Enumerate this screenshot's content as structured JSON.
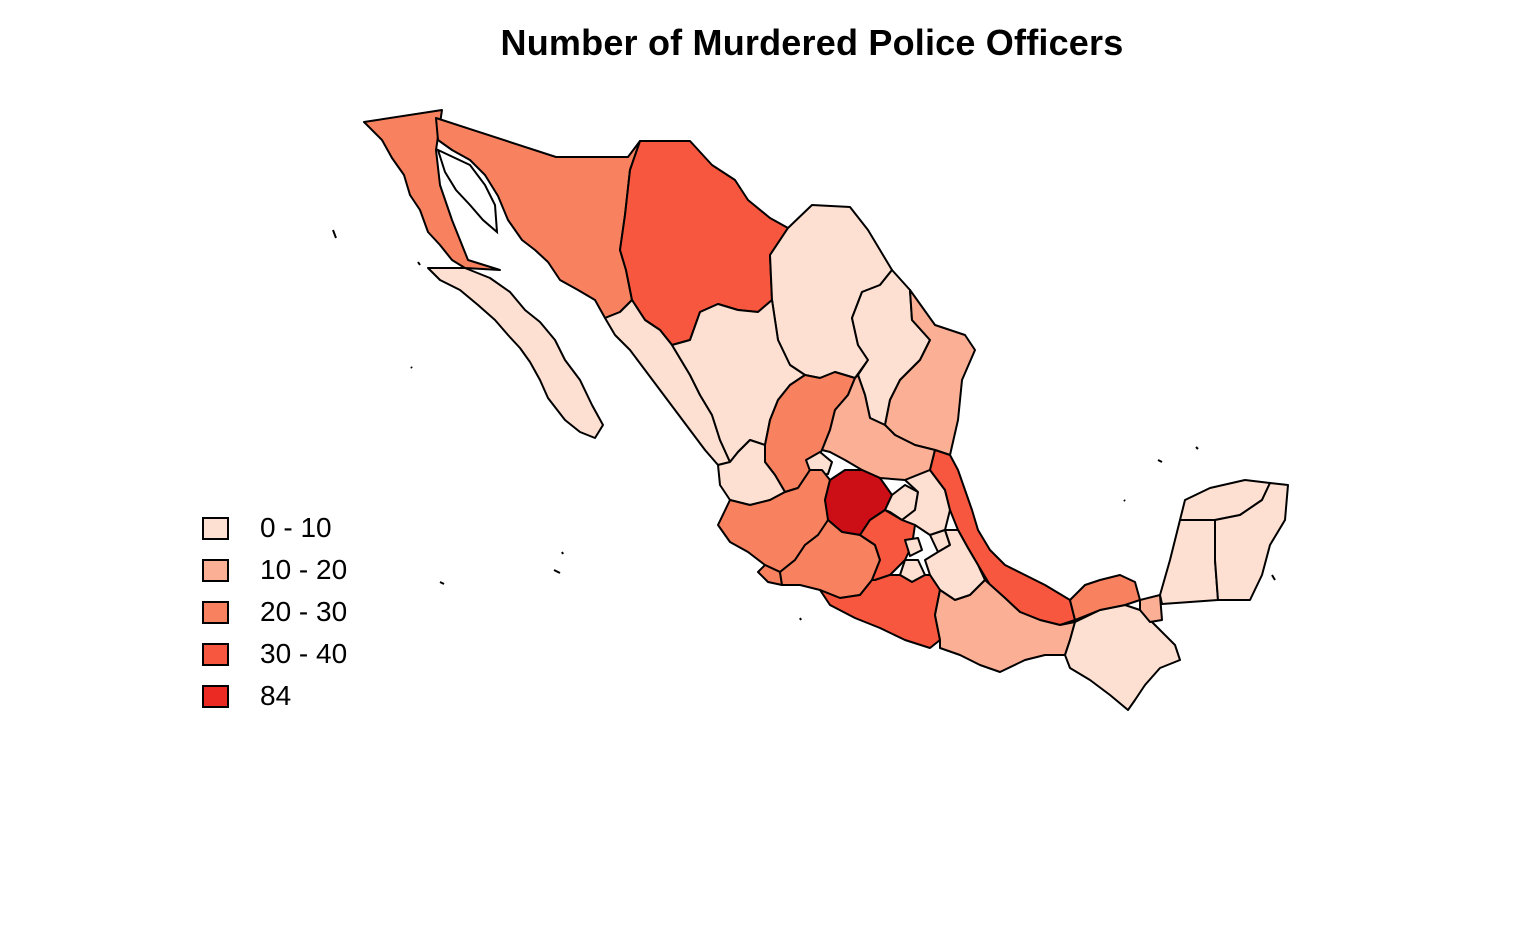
{
  "title": "Number of Murdered Police Officers",
  "colors": {
    "class_0_10": "#fde0d2",
    "class_10_20": "#fbb096",
    "class_20_30": "#f8825f",
    "class_30_40": "#f6573e",
    "class_84": "#cc0e17",
    "class_84_legend": "#ea2a23",
    "border": "#000000"
  },
  "legend": {
    "items": [
      {
        "label": "0 - 10",
        "color": "#fde0d2"
      },
      {
        "label": "10 - 20",
        "color": "#fbb096"
      },
      {
        "label": "20 - 30",
        "color": "#f8825f"
      },
      {
        "label": "30 - 40",
        "color": "#f6573e"
      },
      {
        "label": "84",
        "color": "#ea2a23"
      }
    ]
  }
}
